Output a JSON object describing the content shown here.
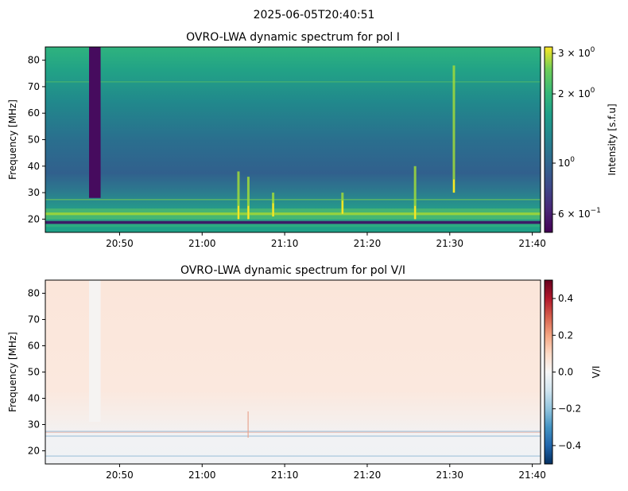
{
  "suptitle": "2025-06-05T20:40:51",
  "chart_data": [
    {
      "type": "heatmap",
      "title": "OVRO-LWA dynamic spectrum for pol I",
      "xlabel": "",
      "ylabel": "Frequency [MHz]",
      "x_range": [
        "20:41",
        "21:41"
      ],
      "ylim": [
        15,
        85
      ],
      "x_ticks": [
        {
          "label": "20:50",
          "minute": 50
        },
        {
          "label": "21:00",
          "minute": 60
        },
        {
          "label": "21:10",
          "minute": 70
        },
        {
          "label": "21:20",
          "minute": 80
        },
        {
          "label": "21:30",
          "minute": 90
        },
        {
          "label": "21:40",
          "minute": 100
        }
      ],
      "y_ticks": [
        20,
        30,
        40,
        50,
        60,
        70,
        80
      ],
      "colorscale": "viridis",
      "color_scale_type": "log",
      "colorbar": {
        "label": "Intensity [s.f.u]",
        "range": [
          0.5,
          3.2
        ],
        "ticks": [
          {
            "value": 0.6,
            "label": "6 × 10",
            "exp": "−1"
          },
          {
            "value": 1,
            "label": "10",
            "exp": "0"
          },
          {
            "value": 2,
            "label": "2 × 10",
            "exp": "0"
          },
          {
            "value": 3,
            "label": "3 × 10",
            "exp": "0"
          }
        ]
      },
      "features": {
        "background_level": 1.0,
        "data_gap": {
          "start_minute": 46.3,
          "end_minute": 47.7,
          "freq_from": 28,
          "freq_to": 85
        },
        "bursts": [
          {
            "minute": 64.4,
            "freq_low": 20,
            "freq_high": 38
          },
          {
            "minute": 65.6,
            "freq_low": 20,
            "freq_high": 36
          },
          {
            "minute": 68.6,
            "freq_low": 21,
            "freq_high": 30
          },
          {
            "minute": 77.0,
            "freq_low": 22,
            "freq_high": 30
          },
          {
            "minute": 85.8,
            "freq_low": 20,
            "freq_high": 40
          },
          {
            "minute": 90.5,
            "freq_low": 30,
            "freq_high": 78
          }
        ]
      }
    },
    {
      "type": "heatmap",
      "title": "OVRO-LWA dynamic spectrum for pol V/I",
      "xlabel": "",
      "ylabel": "Frequency [MHz]",
      "x_range": [
        "20:41",
        "21:41"
      ],
      "ylim": [
        15,
        85
      ],
      "x_ticks": [
        {
          "label": "20:50",
          "minute": 50
        },
        {
          "label": "21:00",
          "minute": 60
        },
        {
          "label": "21:10",
          "minute": 70
        },
        {
          "label": "21:20",
          "minute": 80
        },
        {
          "label": "21:30",
          "minute": 90
        },
        {
          "label": "21:40",
          "minute": 100
        }
      ],
      "y_ticks": [
        20,
        30,
        40,
        50,
        60,
        70,
        80
      ],
      "colorscale": "RdBu_r",
      "color_scale_type": "linear",
      "colorbar": {
        "label": "V/I",
        "range": [
          -0.5,
          0.5
        ],
        "ticks": [
          {
            "value": 0.4,
            "label": "0.4"
          },
          {
            "value": 0.2,
            "label": "0.2"
          },
          {
            "value": 0.0,
            "label": "0.0"
          },
          {
            "value": -0.2,
            "label": "−0.2"
          },
          {
            "value": -0.4,
            "label": "−0.4"
          }
        ]
      },
      "features": {
        "background_level": 0.06
      }
    }
  ]
}
